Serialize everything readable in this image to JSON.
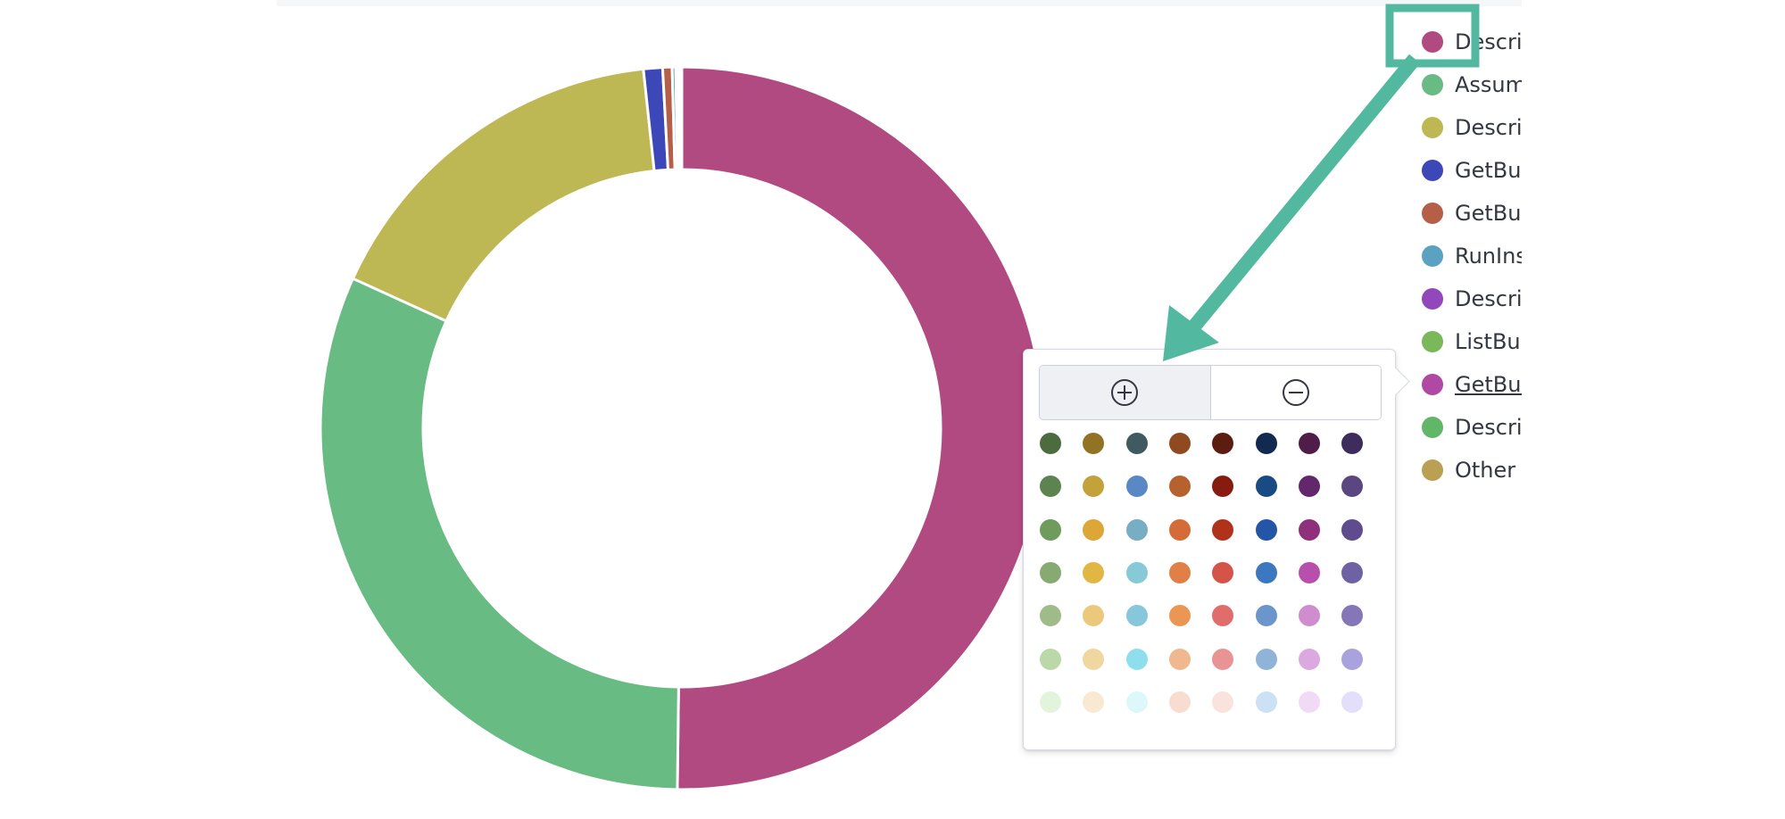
{
  "chart_data": {
    "type": "pie",
    "donut": true,
    "categories": [
      "Descri",
      "Assum",
      "Descri",
      "GetBuc",
      "GetBuc",
      "RunIns",
      "Descri",
      "ListBuc",
      "GetBuc",
      "Descri",
      "Other"
    ],
    "values": [
      50.2,
      31.6,
      16.5,
      0.85,
      0.42,
      0.16,
      0.1,
      0.07,
      0.05,
      0.03,
      0.02
    ],
    "colors": [
      "#b14a80",
      "#68bb82",
      "#bdb853",
      "#3c47b8",
      "#b55e48",
      "#5aa1c2",
      "#9248bb",
      "#7ab85a",
      "#b049a4",
      "#62b668",
      "#b9a053"
    ]
  },
  "legend": {
    "items": [
      {
        "label": "Descri",
        "color": "#b14a80"
      },
      {
        "label": "Assum",
        "color": "#68bb82"
      },
      {
        "label": "Descri",
        "color": "#bdb853"
      },
      {
        "label": "GetBuc",
        "color": "#3c47b8"
      },
      {
        "label": "GetBuc",
        "color": "#b55e48"
      },
      {
        "label": "RunIns",
        "color": "#5aa1c2"
      },
      {
        "label": "Descri",
        "color": "#9248bb"
      },
      {
        "label": "ListBuc",
        "color": "#7ab85a"
      },
      {
        "label": "GetBuc",
        "color": "#b049a4"
      },
      {
        "label": "Descri",
        "color": "#62b668"
      },
      {
        "label": "Other",
        "color": "#b9a053"
      }
    ]
  },
  "popover": {
    "zoom_in_icon": "plus-in-circle-icon",
    "zoom_out_icon": "minus-in-circle-icon",
    "palette": [
      [
        "#4c6b3e",
        "#927326",
        "#3f5a60",
        "#8f4a1f",
        "#5c1c0f",
        "#122a4f",
        "#501c4a",
        "#3d2c5c"
      ],
      [
        "#5d8450",
        "#c4a23a",
        "#5a88c5",
        "#b6612e",
        "#861c10",
        "#184a84",
        "#63276b",
        "#5a477f"
      ],
      [
        "#6f9b5d",
        "#dda737",
        "#77aec4",
        "#d36c38",
        "#b1321b",
        "#2356a6",
        "#8f307c",
        "#5e4c8f"
      ],
      [
        "#86aa72",
        "#e2b643",
        "#86cad8",
        "#e07f46",
        "#d45449",
        "#3c78c0",
        "#b94fac",
        "#6e62a4"
      ],
      [
        "#9fbb8a",
        "#ebc87b",
        "#86c7dc",
        "#eb9652",
        "#e06c6b",
        "#6a96cc",
        "#cf8ccf",
        "#8576b8"
      ],
      [
        "#bbd8a9",
        "#f0d7a0",
        "#8fdeee",
        "#f0b88e",
        "#e89494",
        "#90b4d8",
        "#dba8df",
        "#a8a2dd"
      ],
      [
        "#e2f5dc",
        "#fae9d2",
        "#dcf8fa",
        "#f7dccf",
        "#fae3dd",
        "#cde1f4",
        "#f1daf6",
        "#e3defa"
      ]
    ]
  }
}
